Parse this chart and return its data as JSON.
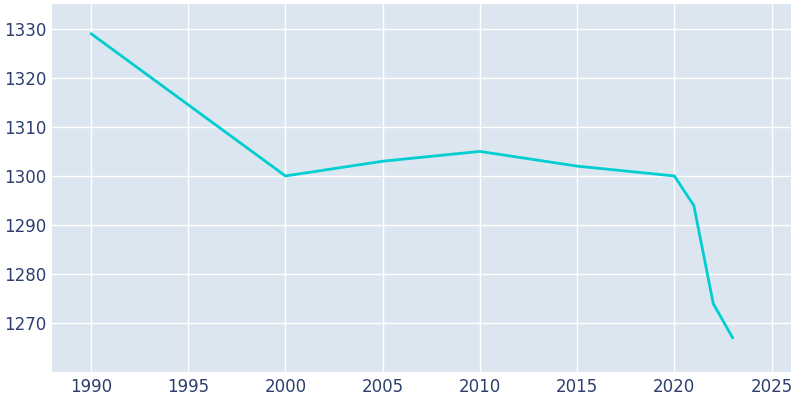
{
  "years": [
    1990,
    2000,
    2005,
    2010,
    2015,
    2020,
    2021,
    2022,
    2023
  ],
  "population": [
    1329,
    1300,
    1303,
    1305,
    1302,
    1300,
    1294,
    1274,
    1267
  ],
  "line_color": "#00CED1",
  "fig_bg_color": "#ffffff",
  "plot_bg_color": "#dce6f0",
  "grid_color": "#ffffff",
  "tick_color": "#2e3f6e",
  "xlim": [
    1988,
    2026
  ],
  "ylim": [
    1260,
    1335
  ],
  "xticks": [
    1990,
    1995,
    2000,
    2005,
    2010,
    2015,
    2020,
    2025
  ],
  "yticks": [
    1270,
    1280,
    1290,
    1300,
    1310,
    1320,
    1330
  ],
  "linewidth": 2.0,
  "figsize": [
    8.0,
    4.0
  ],
  "dpi": 100,
  "tick_fontsize": 12
}
